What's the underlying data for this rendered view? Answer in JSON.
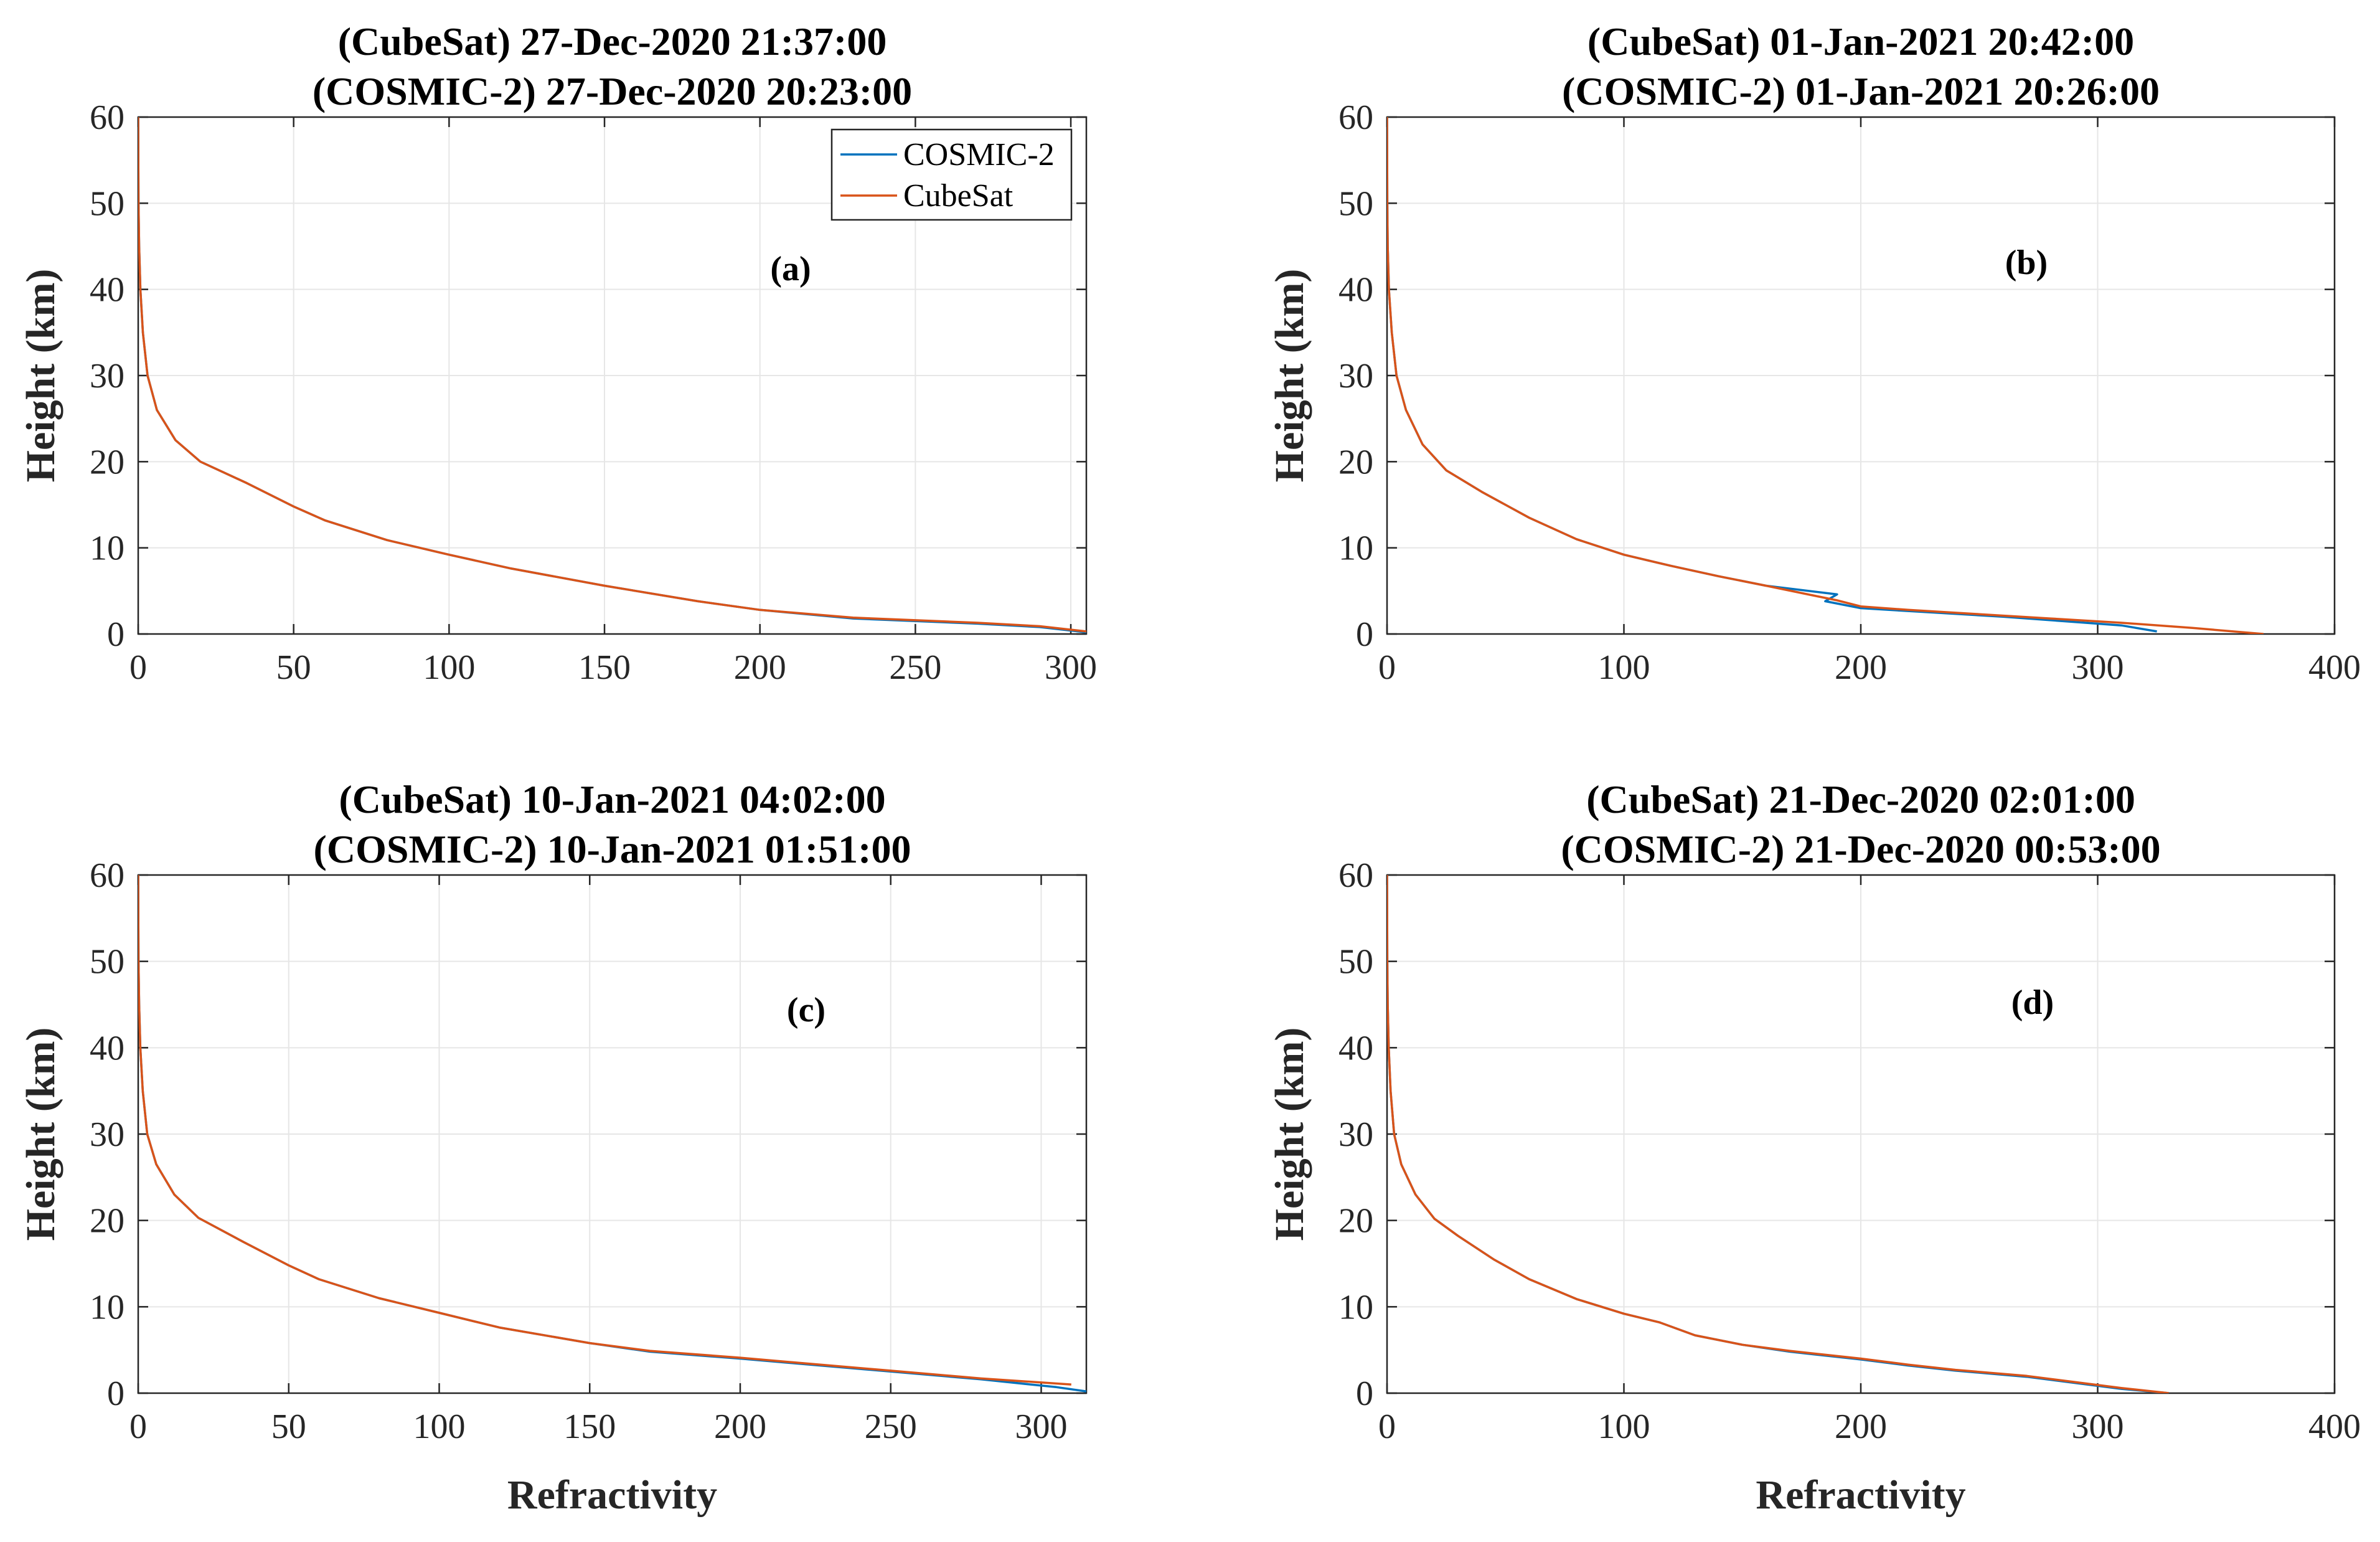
{
  "chart_data": [
    {
      "type": "line",
      "title_lines": [
        "(CubeSat) 27-Dec-2020 21:37:00",
        "(COSMIC-2) 27-Dec-2020 20:23:00"
      ],
      "annotation": "(a)",
      "xlabel": "",
      "ylabel": "Height (km)",
      "xlim": [
        0,
        305
      ],
      "ylim": [
        0,
        60
      ],
      "xticks": [
        0,
        50,
        100,
        150,
        200,
        250,
        300
      ],
      "yticks": [
        0,
        10,
        20,
        30,
        40,
        50,
        60
      ],
      "grid": true,
      "legend": {
        "position": "top-right",
        "entries": [
          "COSMIC-2",
          "CubeSat"
        ]
      },
      "series": [
        {
          "name": "COSMIC-2",
          "color": "#0072BD",
          "points": [
            [
              305,
              0.2
            ],
            [
              290,
              0.8
            ],
            [
              270,
              1.2
            ],
            [
              250,
              1.5
            ],
            [
              230,
              1.8
            ],
            [
              200,
              2.8
            ],
            [
              180,
              3.8
            ],
            [
              150,
              5.6
            ],
            [
              120,
              7.6
            ],
            [
              100,
              9.2
            ],
            [
              80,
              10.9
            ],
            [
              60,
              13.2
            ],
            [
              50,
              14.8
            ],
            [
              35,
              17.5
            ],
            [
              20,
              20
            ],
            [
              12,
              22.5
            ],
            [
              6,
              26
            ],
            [
              3,
              30
            ],
            [
              1.5,
              35
            ],
            [
              0.7,
              40
            ],
            [
              0.3,
              45
            ],
            [
              0.1,
              50
            ],
            [
              0.05,
              55
            ],
            [
              0.01,
              60
            ]
          ]
        },
        {
          "name": "CubeSat",
          "color": "#D95319",
          "points": [
            [
              305,
              0.3
            ],
            [
              290,
              0.9
            ],
            [
              270,
              1.3
            ],
            [
              250,
              1.6
            ],
            [
              230,
              1.9
            ],
            [
              200,
              2.8
            ],
            [
              180,
              3.8
            ],
            [
              150,
              5.6
            ],
            [
              120,
              7.6
            ],
            [
              100,
              9.2
            ],
            [
              80,
              10.9
            ],
            [
              60,
              13.2
            ],
            [
              50,
              14.8
            ],
            [
              35,
              17.5
            ],
            [
              20,
              20
            ],
            [
              12,
              22.5
            ],
            [
              6,
              26
            ],
            [
              3,
              30
            ],
            [
              1.5,
              35
            ],
            [
              0.7,
              40
            ],
            [
              0.3,
              45
            ],
            [
              0.1,
              50
            ],
            [
              0.05,
              55
            ],
            [
              0.01,
              60
            ]
          ]
        }
      ]
    },
    {
      "type": "line",
      "title_lines": [
        "(CubeSat) 01-Jan-2021 20:42:00",
        "(COSMIC-2) 01-Jan-2021 20:26:00"
      ],
      "annotation": "(b)",
      "xlabel": "",
      "ylabel": "Height (km)",
      "xlim": [
        0,
        400
      ],
      "ylim": [
        0,
        60
      ],
      "xticks": [
        0,
        100,
        200,
        300,
        400
      ],
      "yticks": [
        0,
        10,
        20,
        30,
        40,
        50,
        60
      ],
      "grid": true,
      "series": [
        {
          "name": "COSMIC-2",
          "color": "#0072BD",
          "points": [
            [
              325,
              0.3
            ],
            [
              310,
              1.0
            ],
            [
              290,
              1.4
            ],
            [
              260,
              2.0
            ],
            [
              230,
              2.5
            ],
            [
              200,
              3.0
            ],
            [
              185,
              3.8
            ],
            [
              190,
              4.6
            ],
            [
              160,
              5.6
            ],
            [
              140,
              6.7
            ],
            [
              120,
              7.9
            ],
            [
              100,
              9.2
            ],
            [
              80,
              11.0
            ],
            [
              60,
              13.5
            ],
            [
              40,
              16.5
            ],
            [
              25,
              19
            ],
            [
              15,
              22
            ],
            [
              8,
              26
            ],
            [
              4,
              30
            ],
            [
              2,
              35
            ],
            [
              0.8,
              40
            ],
            [
              0.3,
              45
            ],
            [
              0.1,
              50
            ],
            [
              0.05,
              55
            ],
            [
              0.01,
              60
            ]
          ]
        },
        {
          "name": "CubeSat",
          "color": "#D95319",
          "points": [
            [
              370,
              0
            ],
            [
              340,
              0.7
            ],
            [
              310,
              1.3
            ],
            [
              280,
              1.8
            ],
            [
              250,
              2.3
            ],
            [
              220,
              2.8
            ],
            [
              200,
              3.2
            ],
            [
              190,
              3.9
            ],
            [
              160,
              5.6
            ],
            [
              140,
              6.7
            ],
            [
              120,
              7.9
            ],
            [
              100,
              9.2
            ],
            [
              80,
              11.0
            ],
            [
              60,
              13.5
            ],
            [
              40,
              16.5
            ],
            [
              25,
              19
            ],
            [
              15,
              22
            ],
            [
              8,
              26
            ],
            [
              4,
              30
            ],
            [
              2,
              35
            ],
            [
              0.8,
              40
            ],
            [
              0.3,
              45
            ],
            [
              0.1,
              50
            ],
            [
              0.05,
              55
            ],
            [
              0.01,
              60
            ]
          ]
        }
      ]
    },
    {
      "type": "line",
      "title_lines": [
        "(CubeSat) 10-Jan-2021 04:02:00",
        "(COSMIC-2) 10-Jan-2021 01:51:00"
      ],
      "annotation": "(c)",
      "xlabel": "Refractivity",
      "ylabel": "Height (km)",
      "xlim": [
        0,
        315
      ],
      "ylim": [
        0,
        60
      ],
      "xticks": [
        0,
        50,
        100,
        150,
        200,
        250,
        300
      ],
      "yticks": [
        0,
        10,
        20,
        30,
        40,
        50,
        60
      ],
      "grid": true,
      "series": [
        {
          "name": "COSMIC-2",
          "color": "#0072BD",
          "points": [
            [
              315,
              0.2
            ],
            [
              305,
              0.7
            ],
            [
              280,
              1.6
            ],
            [
              250,
              2.5
            ],
            [
              220,
              3.4
            ],
            [
              200,
              4.0
            ],
            [
              170,
              4.8
            ],
            [
              150,
              5.8
            ],
            [
              120,
              7.6
            ],
            [
              100,
              9.3
            ],
            [
              80,
              11.0
            ],
            [
              60,
              13.2
            ],
            [
              50,
              14.8
            ],
            [
              35,
              17.5
            ],
            [
              20,
              20.3
            ],
            [
              12,
              23
            ],
            [
              6,
              26.5
            ],
            [
              3,
              30
            ],
            [
              1.5,
              35
            ],
            [
              0.7,
              40
            ],
            [
              0.3,
              45
            ],
            [
              0.1,
              50
            ],
            [
              0.05,
              55
            ],
            [
              0.01,
              60
            ]
          ]
        },
        {
          "name": "CubeSat",
          "color": "#D95319",
          "points": [
            [
              310,
              1.0
            ],
            [
              280,
              1.7
            ],
            [
              250,
              2.6
            ],
            [
              220,
              3.5
            ],
            [
              200,
              4.1
            ],
            [
              170,
              4.9
            ],
            [
              150,
              5.8
            ],
            [
              120,
              7.6
            ],
            [
              100,
              9.3
            ],
            [
              80,
              11.0
            ],
            [
              60,
              13.2
            ],
            [
              50,
              14.8
            ],
            [
              35,
              17.5
            ],
            [
              20,
              20.3
            ],
            [
              12,
              23
            ],
            [
              6,
              26.5
            ],
            [
              3,
              30
            ],
            [
              1.5,
              35
            ],
            [
              0.7,
              40
            ],
            [
              0.3,
              45
            ],
            [
              0.1,
              50
            ],
            [
              0.05,
              55
            ],
            [
              0.01,
              60
            ]
          ]
        }
      ]
    },
    {
      "type": "line",
      "title_lines": [
        "(CubeSat) 21-Dec-2020 02:01:00",
        "(COSMIC-2) 21-Dec-2020 00:53:00"
      ],
      "annotation": "(d)",
      "xlabel": "Refractivity",
      "ylabel": "Height (km)",
      "xlim": [
        0,
        400
      ],
      "ylim": [
        0,
        60
      ],
      "xticks": [
        0,
        100,
        200,
        300,
        400
      ],
      "yticks": [
        0,
        10,
        20,
        30,
        40,
        50,
        60
      ],
      "grid": true,
      "series": [
        {
          "name": "COSMIC-2",
          "color": "#0072BD",
          "points": [
            [
              330,
              0
            ],
            [
              310,
              0.5
            ],
            [
              290,
              1.2
            ],
            [
              270,
              1.9
            ],
            [
              240,
              2.6
            ],
            [
              220,
              3.2
            ],
            [
              200,
              3.9
            ],
            [
              170,
              4.8
            ],
            [
              150,
              5.6
            ],
            [
              130,
              6.7
            ],
            [
              115,
              8.2
            ],
            [
              100,
              9.2
            ],
            [
              80,
              10.9
            ],
            [
              60,
              13.2
            ],
            [
              45,
              15.5
            ],
            [
              30,
              18.2
            ],
            [
              20,
              20.2
            ],
            [
              12,
              23
            ],
            [
              6,
              26.5
            ],
            [
              3,
              30
            ],
            [
              1.5,
              35
            ],
            [
              0.7,
              40
            ],
            [
              0.3,
              45
            ],
            [
              0.1,
              50
            ],
            [
              0.05,
              55
            ],
            [
              0.01,
              60
            ]
          ]
        },
        {
          "name": "CubeSat",
          "color": "#D95319",
          "points": [
            [
              330,
              0
            ],
            [
              310,
              0.6
            ],
            [
              290,
              1.3
            ],
            [
              270,
              2.0
            ],
            [
              240,
              2.7
            ],
            [
              220,
              3.3
            ],
            [
              200,
              4.0
            ],
            [
              170,
              4.9
            ],
            [
              150,
              5.6
            ],
            [
              130,
              6.7
            ],
            [
              115,
              8.2
            ],
            [
              100,
              9.2
            ],
            [
              80,
              10.9
            ],
            [
              60,
              13.2
            ],
            [
              45,
              15.5
            ],
            [
              30,
              18.2
            ],
            [
              20,
              20.2
            ],
            [
              12,
              23
            ],
            [
              6,
              26.5
            ],
            [
              3,
              30
            ],
            [
              1.5,
              35
            ],
            [
              0.7,
              40
            ],
            [
              0.3,
              45
            ],
            [
              0.1,
              50
            ],
            [
              0.05,
              55
            ],
            [
              0.01,
              60
            ]
          ]
        }
      ]
    }
  ]
}
